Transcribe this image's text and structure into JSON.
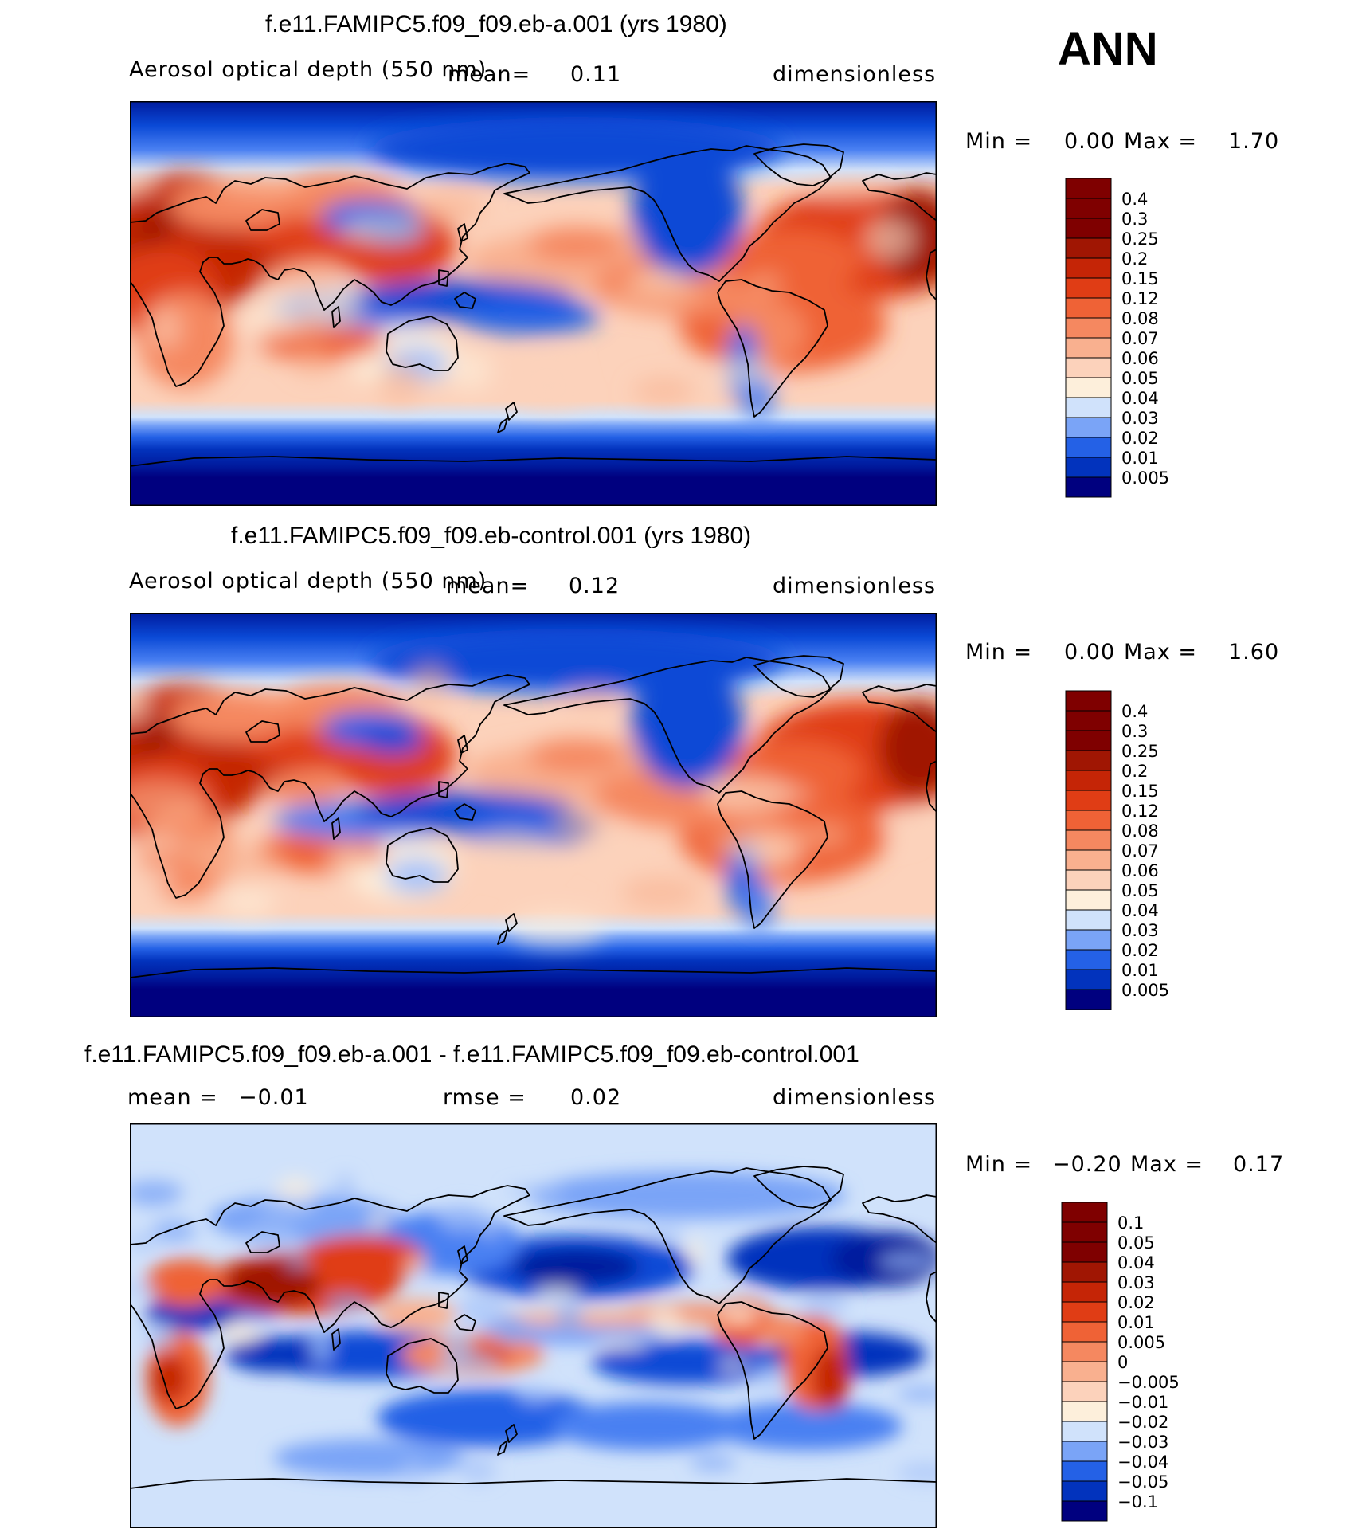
{
  "season": "ANN",
  "colors": {
    "level_18": [
      "#00007f",
      "#001b9e",
      "#0233bd",
      "#0a49d6",
      "#2461e6",
      "#4a80f2",
      "#7aa4f7",
      "#a6c3fa",
      "#d0e2fb",
      "#fdefdb",
      "#fcd2bb",
      "#f9b08f",
      "#f58860",
      "#ef6236",
      "#e03d15",
      "#c52506",
      "#a01603",
      "#7f0000"
    ],
    "level_16": [
      "#00007f",
      "#0233bd",
      "#2461e6",
      "#7aa4f7",
      "#d0e2fb",
      "#fdefdb",
      "#fcd2bb",
      "#f9b08f",
      "#f58860",
      "#ef6236",
      "#e03d15",
      "#c52506",
      "#a01603",
      "#7f0000",
      "#7f0000",
      "#7f0000"
    ]
  },
  "panels": [
    {
      "title": "f.e11.FAMIPC5.f09_f09.eb-a.001 (yrs 1980)",
      "variable": "Aerosol optical depth (550 nm)",
      "mean_label": "mean=",
      "mean_value": "0.11",
      "units": "dimensionless",
      "min_label": "Min =",
      "min_value": "0.00",
      "max_label": "Max =",
      "max_value": "1.70",
      "levels": [
        "0.4",
        "0.3",
        "0.25",
        "0.2",
        "0.15",
        "0.12",
        "0.08",
        "0.07",
        "0.06",
        "0.05",
        "0.04",
        "0.03",
        "0.02",
        "0.01",
        "0.005"
      ]
    },
    {
      "title": "f.e11.FAMIPC5.f09_f09.eb-control.001 (yrs 1980)",
      "variable": "Aerosol optical depth (550 nm)",
      "mean_label": "mean=",
      "mean_value": "0.12",
      "units": "dimensionless",
      "min_label": "Min =",
      "min_value": "0.00",
      "max_label": "Max =",
      "max_value": "1.60",
      "levels": [
        "0.4",
        "0.3",
        "0.25",
        "0.2",
        "0.15",
        "0.12",
        "0.08",
        "0.07",
        "0.06",
        "0.05",
        "0.04",
        "0.03",
        "0.02",
        "0.01",
        "0.005"
      ]
    },
    {
      "title": "f.e11.FAMIPC5.f09_f09.eb-a.001 - f.e11.FAMIPC5.f09_f09.eb-control.001",
      "mean_label": "mean =",
      "mean_value": "−0.01",
      "rmse_label": "rmse =",
      "rmse_value": "0.02",
      "units": "dimensionless",
      "min_label": "Min =",
      "min_value": "−0.20",
      "max_label": "Max =",
      "max_value": "0.17",
      "levels": [
        "0.1",
        "0.05",
        "0.04",
        "0.03",
        "0.02",
        "0.01",
        "0.005",
        "0",
        "−0.005",
        "−0.01",
        "−0.02",
        "−0.03",
        "−0.04",
        "−0.05",
        "−0.1"
      ]
    }
  ]
}
